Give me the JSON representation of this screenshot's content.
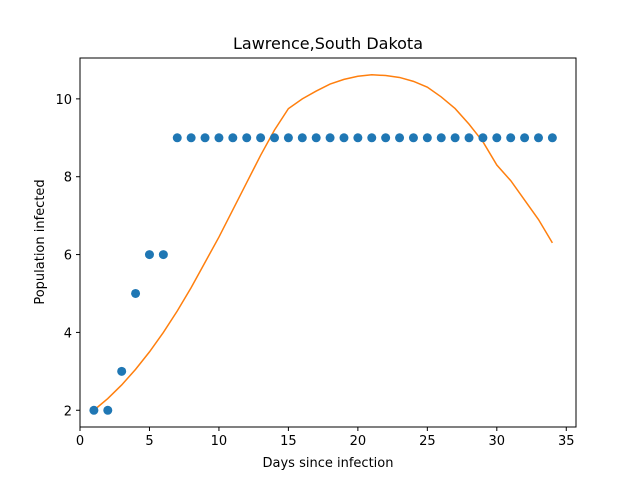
{
  "chart_data": {
    "type": "scatter",
    "title": "Lawrence,South Dakota",
    "xlabel": "Days since infection",
    "ylabel": "Population infected",
    "xlim": [
      0.0,
      35.7
    ],
    "ylim": [
      1.57,
      11.05
    ],
    "xticks": [
      0,
      5,
      10,
      15,
      20,
      25,
      30,
      35
    ],
    "yticks": [
      2,
      4,
      6,
      8,
      10
    ],
    "grid": false,
    "series": [
      {
        "kind": "scatter",
        "color": "#1f77b4",
        "x": [
          1,
          2,
          3,
          4,
          5,
          6,
          7,
          8,
          9,
          10,
          11,
          12,
          13,
          14,
          15,
          16,
          17,
          18,
          19,
          20,
          21,
          22,
          23,
          24,
          25,
          26,
          27,
          28,
          29,
          30,
          31,
          32,
          33,
          34
        ],
        "y": [
          2,
          2,
          3,
          5,
          6,
          6,
          9,
          9,
          9,
          9,
          9,
          9,
          9,
          9,
          9,
          9,
          9,
          9,
          9,
          9,
          9,
          9,
          9,
          9,
          9,
          9,
          9,
          9,
          9,
          9,
          9,
          9,
          9,
          9
        ]
      },
      {
        "kind": "line",
        "color": "#ff7f0e",
        "x": [
          1,
          2,
          3,
          4,
          5,
          6,
          7,
          8,
          9,
          10,
          11,
          12,
          13,
          14,
          15,
          16,
          17,
          18,
          19,
          20,
          21,
          22,
          23,
          24,
          25,
          26,
          27,
          28,
          29,
          30,
          31,
          32,
          33,
          34
        ],
        "y": [
          2.0,
          2.3,
          2.65,
          3.05,
          3.5,
          4.0,
          4.55,
          5.15,
          5.8,
          6.45,
          7.15,
          7.85,
          8.55,
          9.2,
          9.75,
          10.0,
          10.2,
          10.38,
          10.5,
          10.58,
          10.62,
          10.6,
          10.55,
          10.45,
          10.3,
          10.05,
          9.75,
          9.35,
          8.9,
          8.3,
          7.9,
          7.4,
          6.9,
          6.3
        ]
      }
    ]
  }
}
